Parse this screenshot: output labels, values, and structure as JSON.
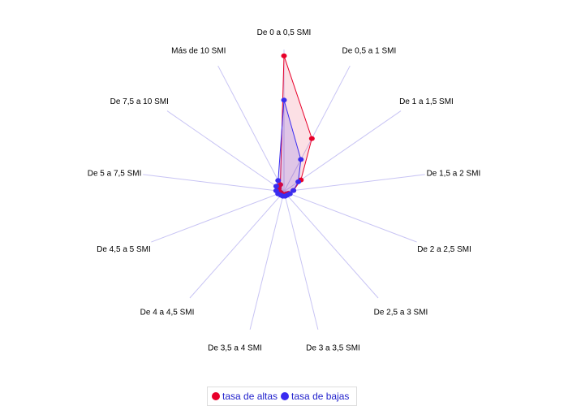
{
  "chart_data": {
    "type": "radar",
    "categories": [
      "De 0 a 0,5 SMI",
      "De 0,5 a 1 SMI",
      "De 1 a 1,5 SMI",
      "De 1,5 a 2 SMI",
      "De 2 a 2,5 SMI",
      "De 2,5 a 3 SMI",
      "De 3 a 3,5 SMI",
      "De 3,5 a 4 SMI",
      "De 4 a 4,5 SMI",
      "De 4,5 a 5 SMI",
      "De 5 a 7,5 SMI",
      "De 7,5 a 10 SMI",
      "Más de 10 SMI"
    ],
    "max": 45,
    "series": [
      {
        "name": "tasa de altas",
        "color": "#e8002a",
        "values": [
          43,
          19,
          6.5,
          3,
          1.5,
          1,
          1,
          1,
          1,
          1,
          1.5,
          2,
          2.5
        ]
      },
      {
        "name": "tasa de bajas",
        "color": "#3a2cf0",
        "values": [
          29,
          11.5,
          5.5,
          3,
          2,
          1.5,
          1.5,
          1.5,
          1.5,
          2,
          2.5,
          3,
          4
        ]
      }
    ],
    "legend_position": "bottom"
  }
}
